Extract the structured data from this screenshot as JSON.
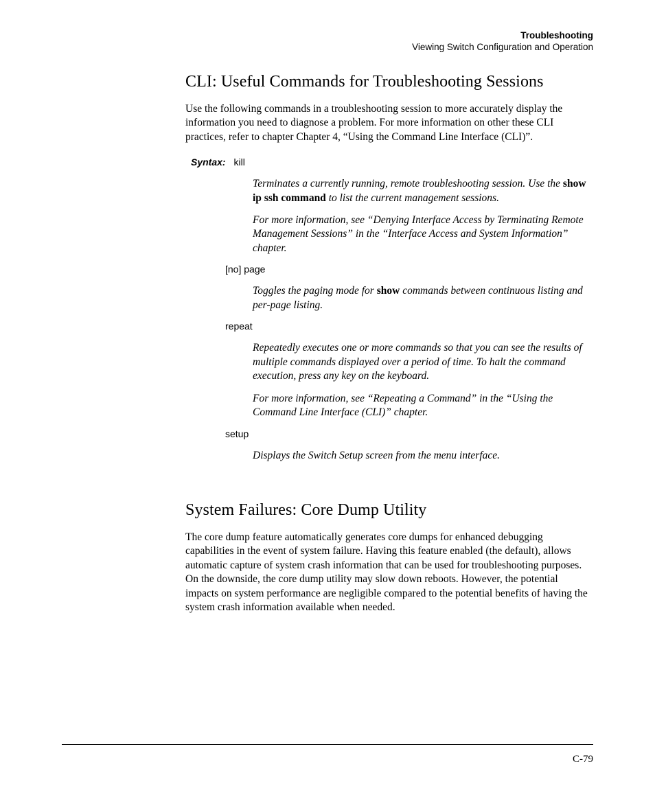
{
  "header": {
    "title": "Troubleshooting",
    "subtitle": "Viewing Switch Configuration and Operation"
  },
  "section1": {
    "title": "CLI: Useful Commands for Troubleshooting Sessions",
    "intro": "Use the following commands in a troubleshooting session to more accurately display the information you need to diagnose a problem. For more information on other these CLI practices, refer to chapter Chapter 4, “Using the Command Line Interface (CLI)”.",
    "syntax_label": "Syntax:",
    "cmd_kill": "kill",
    "kill_desc1_a": "Terminates a currently running, remote troubleshooting session. Use the ",
    "kill_desc1_bold": "show ip ssh command",
    "kill_desc1_b": " to list the current management sessions.",
    "kill_desc2": "For more information, see “Denying Interface Access by Terminating Remote Management Sessions” in the “Interface Access and System Information” chapter.",
    "cmd_nopage": "[no] page",
    "nopage_desc_a": "Toggles the paging mode for ",
    "nopage_desc_bold": "show",
    "nopage_desc_b": " commands between continuous listing and per-page listing.",
    "cmd_repeat": "repeat",
    "repeat_desc1": "Repeatedly executes one or more commands so that you can see the results of multiple commands displayed over a period of time. To halt the command execution, press any key on the keyboard.",
    "repeat_desc2": "For more information, see “Repeating a Command” in the “Using the Command Line Interface (CLI)” chapter.",
    "cmd_setup": "setup",
    "setup_desc": "Displays the Switch Setup screen from the menu interface."
  },
  "section2": {
    "title": "System Failures: Core Dump Utility",
    "body": "The core dump feature automatically generates core dumps for enhanced debugging capabilities in the event of system failure. Having this feature enabled (the default), allows automatic capture of system crash information that can be used for troubleshooting purposes. On the downside, the core dump utility may slow down reboots. However, the potential impacts on system performance are negligible compared to the potential benefits of having the system crash information available when needed."
  },
  "page_number": "C-79",
  "colors": {
    "background": "#ffffff",
    "text": "#000000",
    "rule": "#000000"
  },
  "typography": {
    "body_serif": "Century Schoolbook",
    "label_sans": "Arial",
    "heading_size_pt": 24,
    "body_size_pt": 15.5,
    "label_size_pt": 14,
    "header_size_pt": 13.5
  }
}
